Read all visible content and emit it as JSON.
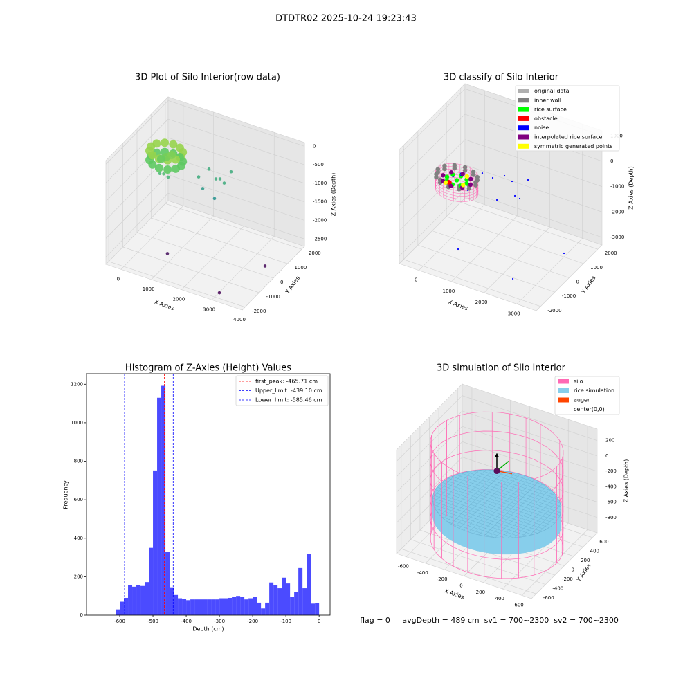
{
  "title": "DTDTR02 2025-10-24 19:23:43",
  "chart_data": [
    {
      "type": "scatter3d",
      "title": "3D Plot of Silo Interior(row data)",
      "xlabel": "X Axies",
      "ylabel": "Y Axies",
      "zlabel": "Z Axies (Depth)",
      "xlim": [
        -500,
        4000
      ],
      "xticks": [
        0,
        1000,
        2000,
        3000,
        4000
      ],
      "ylim": [
        -2200,
        2200
      ],
      "yticks": [
        -2000,
        -1000,
        0,
        1000,
        2000
      ],
      "zlim": [
        -2700,
        100
      ],
      "zticks": [
        0,
        -500,
        -1000,
        -1500,
        -2000,
        -2500
      ],
      "colormap": "viridis",
      "points": {
        "x": [
          873,
          873,
          806,
          806,
          623,
          623,
          373,
          373,
          123,
          123,
          -60,
          -60,
          -127,
          -127,
          -60,
          -60,
          123,
          123,
          373,
          373,
          623,
          623,
          806,
          806,
          373,
          500,
          250,
          300,
          450,
          550,
          1279,
          1895,
          1690,
          1416,
          1793,
          1998,
          1861,
          1211,
          858,
          3544,
          3014
        ],
        "y": [
          190,
          190,
          440,
          440,
          623,
          623,
          690,
          690,
          623,
          623,
          440,
          440,
          190,
          190,
          -60,
          -60,
          -243,
          -243,
          -310,
          -310,
          -243,
          -243,
          -60,
          -60,
          190,
          300,
          100,
          -100,
          -150,
          -50,
          1277,
          1521,
          886,
          543,
          959,
          812,
          421,
          690,
          -757,
          390,
          -1703
        ],
        "z": [
          -350,
          -600,
          -350,
          -600,
          -350,
          -600,
          -350,
          -600,
          -350,
          -600,
          -350,
          -600,
          -350,
          -600,
          -350,
          -600,
          -350,
          -600,
          -350,
          -600,
          -350,
          -600,
          -350,
          -600,
          -500,
          -450,
          -550,
          -850,
          -800,
          -900,
          -1000,
          -1000,
          -1000,
          -1200,
          -1000,
          -1000,
          -1300,
          -1000,
          -2600,
          -2650,
          -2700
        ]
      }
    },
    {
      "type": "classify3d",
      "title": "3D classify of Silo Interior",
      "xlabel": "X Axies",
      "ylabel": "Y Axies",
      "zlabel": "Z Axies (Depth)",
      "xlim": [
        -600,
        3600
      ],
      "xticks": [
        0,
        1000,
        2000,
        3000
      ],
      "ylim": [
        -2300,
        2300
      ],
      "yticks": [
        -2000,
        -1000,
        0,
        1000,
        2000
      ],
      "zlim": [
        -3300,
        1200
      ],
      "zticks": [
        1000,
        0,
        -1000,
        -2000,
        -3000
      ],
      "series": [
        {
          "name": "original data",
          "color": "#b0b0b0",
          "x": [
            1002,
            722,
            162,
            -118,
            162,
            722
          ],
          "y": [
            -654,
            -169,
            -169,
            -654,
            -1139,
            -1139
          ],
          "z": [
            -350,
            -350,
            -350,
            -350,
            -350,
            -350
          ]
        },
        {
          "name": "inner wall",
          "color": "#808080",
          "x": [
            1022,
            944,
            732,
            442,
            152,
            -60,
            -138,
            -60,
            152,
            442,
            732,
            944,
            1022,
            944,
            732,
            442,
            152,
            -60,
            -138,
            -60,
            152,
            442,
            732,
            944
          ],
          "y": [
            -654,
            -364,
            -152,
            -74,
            -152,
            -364,
            -654,
            -944,
            -1156,
            -1234,
            -1156,
            -944,
            -654,
            -364,
            -152,
            -74,
            -152,
            -364,
            -654,
            -944,
            -1156,
            -1234,
            -1156,
            -944
          ],
          "z": [
            -300,
            -300,
            -300,
            -300,
            -300,
            -300,
            -300,
            -300,
            -300,
            -300,
            -300,
            -300,
            -420,
            -420,
            -420,
            -420,
            -420,
            -420,
            -420,
            -420,
            -420,
            -420,
            -420,
            -420
          ]
        },
        {
          "name": "rice surface",
          "color": "#00ff00",
          "x": [
            742,
            654,
            442,
            230,
            142,
            230,
            442,
            654,
            442
          ],
          "y": [
            -654,
            -442,
            -354,
            -442,
            -654,
            -866,
            -954,
            -866,
            -654
          ],
          "z": [
            -480,
            -480,
            -480,
            -480,
            -480,
            -480,
            -480,
            -480,
            -480
          ]
        },
        {
          "name": "obstacle",
          "color": "#ff0000",
          "x": [
            300,
            320
          ],
          "y": [
            -900,
            -880
          ],
          "z": [
            -480,
            -500
          ]
        },
        {
          "name": "noise",
          "color": "#0000ff",
          "x": [
            500,
            350,
            450,
            848,
            1195,
            1416,
            1716,
            2048,
            1505,
            1821,
            1994,
            794,
            584,
            2511,
            3095
          ],
          "y": [
            -500,
            -700,
            -400,
            204,
            140,
            460,
            305,
            663,
            -276,
            262,
            204,
            -687,
            -886,
            -1457,
            790
          ],
          "z": [
            -350,
            -350,
            -350,
            -500,
            -500,
            -500,
            -500,
            -500,
            -1000,
            -1000,
            -1000,
            -700,
            -3000,
            -3000,
            -3000
          ]
        },
        {
          "name": "interpolated rice surface",
          "color": "#800080",
          "x": [
            862,
            739,
            442,
            145,
            22,
            145,
            442,
            739
          ],
          "y": [
            -654,
            -357,
            -234,
            -357,
            -654,
            -951,
            -1074,
            -951
          ],
          "z": [
            -470,
            -470,
            -470,
            -470,
            -470,
            -470,
            -470,
            -470
          ]
        },
        {
          "name": "symmetric generated points",
          "color": "#ffff00",
          "x": [
            600,
            250,
            700
          ],
          "y": [
            -300,
            -1000,
            -800
          ],
          "z": [
            -460,
            -460,
            -470
          ]
        }
      ]
    },
    {
      "type": "histogram",
      "title": "Histogram of Z-Axies (Height) Values",
      "xlabel": "Depth (cm)",
      "ylabel": "Frequency",
      "color": "#4b4bff",
      "xlim": [
        -700,
        33
      ],
      "xticks": [
        -600,
        -500,
        -400,
        -300,
        -200,
        -100,
        0
      ],
      "ylim": [
        0,
        1255
      ],
      "yticks": [
        0,
        200,
        400,
        600,
        800,
        1000,
        1200
      ],
      "bins": [
        -612.5,
        -600,
        -587.5,
        -575,
        -562.5,
        -550,
        -537.5,
        -525,
        -512.5,
        -500,
        -487.5,
        -475,
        -462.5,
        -450,
        -437.5,
        -425,
        -412.5,
        -400,
        -387.5,
        -375,
        -362.5,
        -350,
        -337.5,
        -325,
        -312.5,
        -300,
        -287.5,
        -275,
        -262.5,
        -250,
        -237.5,
        -225,
        -212.5,
        -200,
        -187.5,
        -175,
        -162.5,
        -150,
        -137.5,
        -125,
        -112.5,
        -100,
        -87.5,
        -75,
        -62.5,
        -50,
        -37.5,
        -25,
        -12.5,
        0
      ],
      "counts": [
        30,
        70,
        90,
        155,
        148,
        158,
        152,
        172,
        350,
        752,
        1130,
        1192,
        330,
        145,
        105,
        88,
        85,
        78,
        82,
        82,
        82,
        82,
        82,
        82,
        82,
        88,
        88,
        90,
        95,
        100,
        95,
        82,
        88,
        95,
        65,
        35,
        65,
        170,
        155,
        140,
        195,
        165,
        95,
        120,
        245,
        140,
        320,
        60,
        62
      ],
      "vlines": [
        {
          "label": "first_peak: -465.71 cm",
          "value": -465.71,
          "color": "#ff0000"
        },
        {
          "label": "Upper_limit: -439.10 cm",
          "value": -439.1,
          "color": "#0000ff"
        },
        {
          "label": "Lower_limit: -585.46 cm",
          "value": -585.46,
          "color": "#0000ff"
        }
      ]
    },
    {
      "type": "simulation3d",
      "title": "3D simulation of Silo Interior",
      "xlabel": "X Axies",
      "ylabel": "Y Axies",
      "zlabel": "Z Axies (Depth)",
      "xlim": [
        -700,
        700
      ],
      "xticks": [
        -600,
        -400,
        -200,
        0,
        200,
        400,
        600
      ],
      "ylim": [
        -700,
        700
      ],
      "yticks": [
        -600,
        -400,
        -200,
        0,
        200,
        400,
        600
      ],
      "zlim": [
        -1000,
        350
      ],
      "zticks": [
        200,
        0,
        -200,
        -400,
        -600,
        -800
      ],
      "legend": [
        {
          "name": "silo",
          "color": "#ff69b4"
        },
        {
          "name": "rice simulation",
          "color": "#87ceeb"
        },
        {
          "name": "auger",
          "color": "#ff4500"
        },
        {
          "name": "center(0,0)",
          "color": "#ffffff"
        }
      ],
      "annotation": "flag = 0     avgDepth = 489 cm  sv1 = 700~2300  sv2 = 700~2300"
    }
  ]
}
